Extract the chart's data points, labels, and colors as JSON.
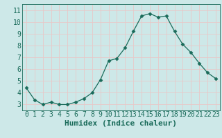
{
  "x": [
    0,
    1,
    2,
    3,
    4,
    5,
    6,
    7,
    8,
    9,
    10,
    11,
    12,
    13,
    14,
    15,
    16,
    17,
    18,
    19,
    20,
    21,
    22,
    23
  ],
  "y": [
    4.4,
    3.4,
    3.0,
    3.2,
    3.0,
    3.0,
    3.2,
    3.5,
    4.0,
    5.1,
    6.7,
    6.9,
    7.8,
    9.2,
    10.5,
    10.7,
    10.4,
    10.5,
    9.2,
    8.1,
    7.4,
    6.5,
    5.7,
    5.2
  ],
  "xlabel": "Humidex (Indice chaleur)",
  "ylim": [
    2.5,
    11.5
  ],
  "xlim": [
    -0.5,
    23.5
  ],
  "yticks": [
    3,
    4,
    5,
    6,
    7,
    8,
    9,
    10,
    11
  ],
  "xticks": [
    0,
    1,
    2,
    3,
    4,
    5,
    6,
    7,
    8,
    9,
    10,
    11,
    12,
    13,
    14,
    15,
    16,
    17,
    18,
    19,
    20,
    21,
    22,
    23
  ],
  "line_color": "#1a6b5a",
  "marker": "D",
  "marker_size": 2.5,
  "bg_color": "#cde8e8",
  "grid_color": "#e8c8c8",
  "xlabel_fontsize": 8,
  "tick_fontsize": 7
}
